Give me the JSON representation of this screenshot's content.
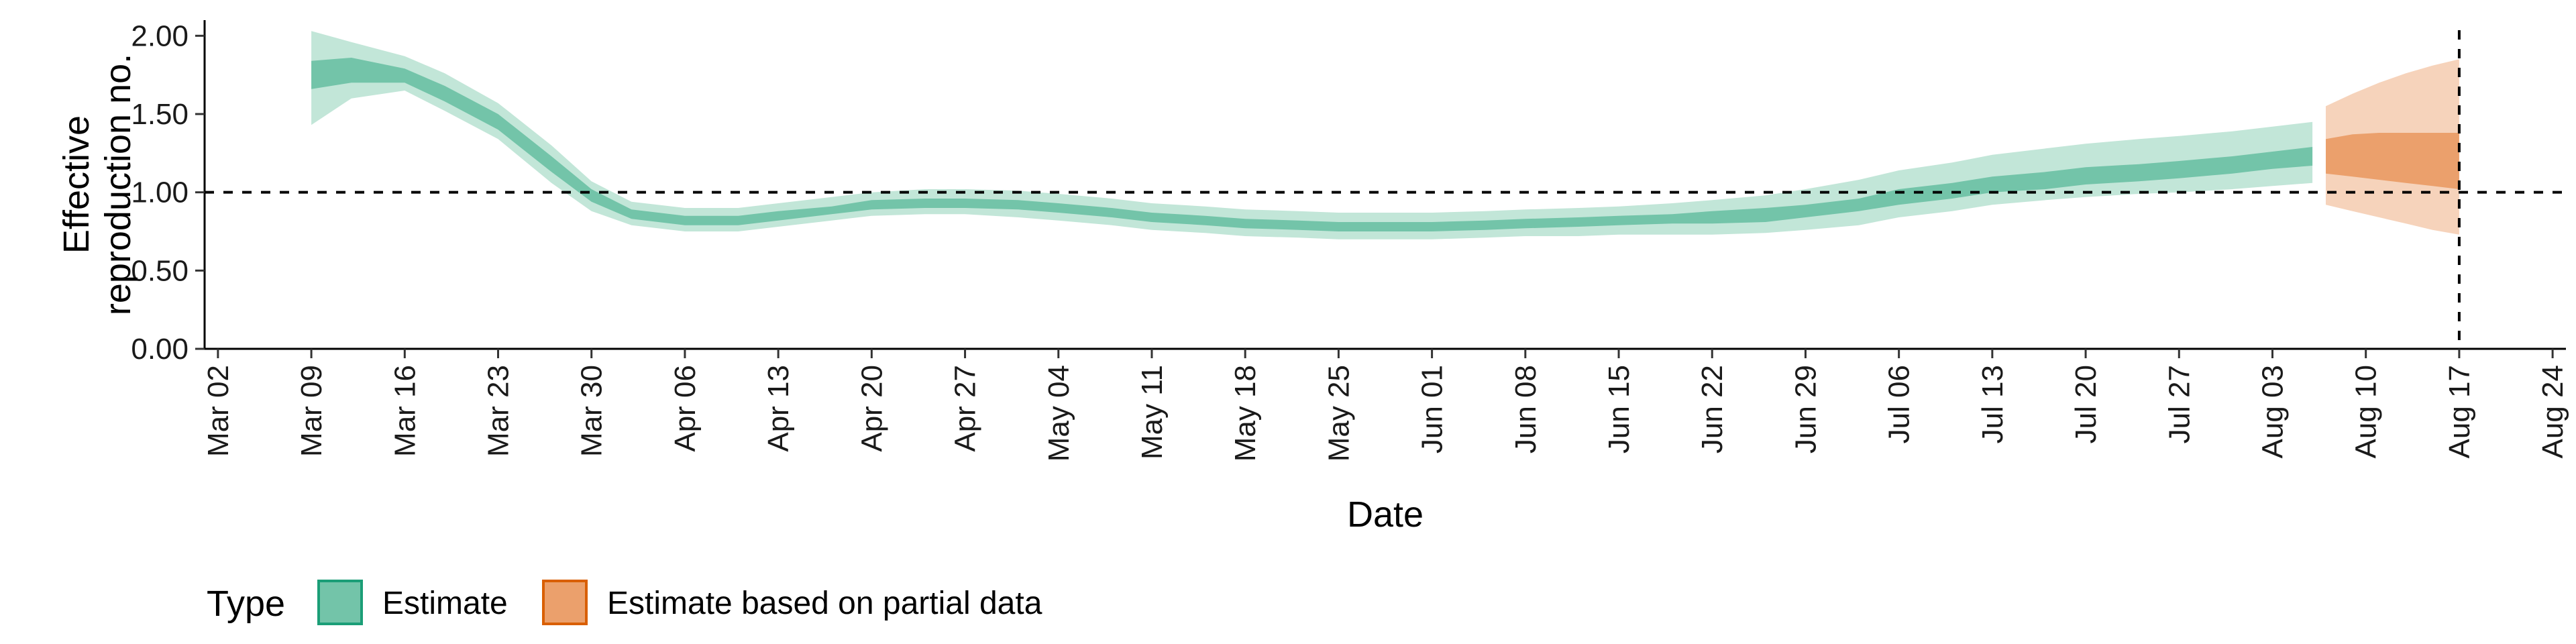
{
  "chart_data": {
    "type": "area",
    "title": "",
    "xlabel": "Date",
    "ylabel": [
      "Effective",
      "reproduction no."
    ],
    "x_tick_labels": [
      "Mar 02",
      "Mar 09",
      "Mar 16",
      "Mar 23",
      "Mar 30",
      "Apr 06",
      "Apr 13",
      "Apr 20",
      "Apr 27",
      "May 04",
      "May 11",
      "May 18",
      "May 25",
      "Jun 01",
      "Jun 08",
      "Jun 15",
      "Jun 22",
      "Jun 29",
      "Jul 06",
      "Jul 13",
      "Jul 20",
      "Jul 27",
      "Aug 03",
      "Aug 10",
      "Aug 17",
      "Aug 24"
    ],
    "x_tick_dates": [
      "2020-03-02",
      "2020-03-09",
      "2020-03-16",
      "2020-03-23",
      "2020-03-30",
      "2020-04-06",
      "2020-04-13",
      "2020-04-20",
      "2020-04-27",
      "2020-05-04",
      "2020-05-11",
      "2020-05-18",
      "2020-05-25",
      "2020-06-01",
      "2020-06-08",
      "2020-06-15",
      "2020-06-22",
      "2020-06-29",
      "2020-07-06",
      "2020-07-13",
      "2020-07-20",
      "2020-07-27",
      "2020-08-03",
      "2020-08-10",
      "2020-08-17",
      "2020-08-24"
    ],
    "xlim": [
      "2020-03-01",
      "2020-08-25"
    ],
    "y_tick_labels": [
      "0.00",
      "0.50",
      "1.00",
      "1.50",
      "2.00"
    ],
    "y_ticks": [
      0,
      0.5,
      1.0,
      1.5,
      2.0
    ],
    "ylim": [
      0,
      2.1
    ],
    "reference_lines": {
      "hline_y": 1.0,
      "vline_x": "2020-08-17"
    },
    "grid": false,
    "legend": {
      "title": "Type",
      "position": "bottom-left",
      "entries": [
        {
          "label": "Estimate",
          "fill": "#73c4a9",
          "border": "#1b9e77"
        },
        {
          "label": "Estimate based on partial data",
          "fill": "#eba06c",
          "border": "#d95f02"
        }
      ]
    },
    "series": [
      {
        "name": "Estimate",
        "colors": {
          "inner": "#73c4a9",
          "outer": "#c2e6d8"
        },
        "x": [
          "2020-03-09",
          "2020-03-12",
          "2020-03-16",
          "2020-03-19",
          "2020-03-23",
          "2020-03-27",
          "2020-03-30",
          "2020-04-02",
          "2020-04-06",
          "2020-04-10",
          "2020-04-13",
          "2020-04-17",
          "2020-04-20",
          "2020-04-24",
          "2020-04-27",
          "2020-05-01",
          "2020-05-04",
          "2020-05-08",
          "2020-05-11",
          "2020-05-15",
          "2020-05-18",
          "2020-05-22",
          "2020-05-25",
          "2020-05-29",
          "2020-06-01",
          "2020-06-05",
          "2020-06-08",
          "2020-06-12",
          "2020-06-15",
          "2020-06-19",
          "2020-06-22",
          "2020-06-26",
          "2020-06-29",
          "2020-07-03",
          "2020-07-06",
          "2020-07-10",
          "2020-07-13",
          "2020-07-17",
          "2020-07-20",
          "2020-07-24",
          "2020-07-27",
          "2020-07-31",
          "2020-08-03",
          "2020-08-06"
        ],
        "median": [
          1.75,
          1.78,
          1.74,
          1.63,
          1.45,
          1.18,
          0.98,
          0.86,
          0.82,
          0.82,
          0.85,
          0.88,
          0.92,
          0.93,
          0.93,
          0.92,
          0.9,
          0.87,
          0.84,
          0.82,
          0.8,
          0.79,
          0.78,
          0.78,
          0.78,
          0.79,
          0.8,
          0.81,
          0.82,
          0.83,
          0.84,
          0.85,
          0.88,
          0.92,
          0.97,
          1.01,
          1.05,
          1.08,
          1.1,
          1.12,
          1.14,
          1.17,
          1.2,
          1.23
        ],
        "lower_50": [
          1.66,
          1.7,
          1.7,
          1.58,
          1.4,
          1.13,
          0.94,
          0.83,
          0.79,
          0.79,
          0.82,
          0.86,
          0.89,
          0.9,
          0.9,
          0.89,
          0.87,
          0.84,
          0.81,
          0.79,
          0.77,
          0.76,
          0.75,
          0.75,
          0.75,
          0.76,
          0.77,
          0.78,
          0.79,
          0.8,
          0.8,
          0.81,
          0.84,
          0.88,
          0.92,
          0.96,
          1.0,
          1.02,
          1.05,
          1.07,
          1.09,
          1.12,
          1.15,
          1.17
        ],
        "upper_50": [
          1.84,
          1.86,
          1.79,
          1.68,
          1.5,
          1.23,
          1.02,
          0.89,
          0.85,
          0.85,
          0.88,
          0.91,
          0.95,
          0.96,
          0.96,
          0.95,
          0.93,
          0.9,
          0.87,
          0.85,
          0.83,
          0.82,
          0.81,
          0.81,
          0.81,
          0.82,
          0.83,
          0.84,
          0.85,
          0.86,
          0.88,
          0.9,
          0.92,
          0.96,
          1.02,
          1.06,
          1.1,
          1.13,
          1.16,
          1.18,
          1.2,
          1.23,
          1.26,
          1.29
        ],
        "lower_90": [
          1.43,
          1.6,
          1.65,
          1.52,
          1.34,
          1.06,
          0.88,
          0.79,
          0.75,
          0.75,
          0.78,
          0.82,
          0.85,
          0.86,
          0.86,
          0.84,
          0.82,
          0.79,
          0.76,
          0.74,
          0.72,
          0.71,
          0.7,
          0.7,
          0.7,
          0.71,
          0.72,
          0.72,
          0.73,
          0.73,
          0.73,
          0.74,
          0.76,
          0.79,
          0.84,
          0.88,
          0.92,
          0.95,
          0.97,
          0.99,
          1.0,
          1.02,
          1.04,
          1.06
        ],
        "upper_90": [
          2.03,
          1.96,
          1.87,
          1.76,
          1.57,
          1.3,
          1.07,
          0.94,
          0.9,
          0.9,
          0.93,
          0.97,
          1.0,
          1.02,
          1.02,
          1.01,
          0.99,
          0.96,
          0.93,
          0.91,
          0.89,
          0.88,
          0.87,
          0.87,
          0.87,
          0.88,
          0.89,
          0.9,
          0.91,
          0.93,
          0.95,
          0.98,
          1.02,
          1.08,
          1.14,
          1.19,
          1.24,
          1.28,
          1.31,
          1.34,
          1.36,
          1.39,
          1.42,
          1.45
        ]
      },
      {
        "name": "Estimate based on partial data",
        "colors": {
          "inner": "#eba06c",
          "outer": "#f6d3bb"
        },
        "x": [
          "2020-08-07",
          "2020-08-09",
          "2020-08-11",
          "2020-08-13",
          "2020-08-15",
          "2020-08-17"
        ],
        "median": [
          1.23,
          1.24,
          1.24,
          1.23,
          1.22,
          1.21
        ],
        "lower_50": [
          1.12,
          1.1,
          1.08,
          1.06,
          1.04,
          1.02
        ],
        "upper_50": [
          1.34,
          1.37,
          1.38,
          1.38,
          1.38,
          1.38
        ],
        "lower_90": [
          0.92,
          0.88,
          0.84,
          0.8,
          0.76,
          0.73
        ],
        "upper_90": [
          1.55,
          1.63,
          1.7,
          1.76,
          1.81,
          1.85
        ]
      }
    ]
  }
}
